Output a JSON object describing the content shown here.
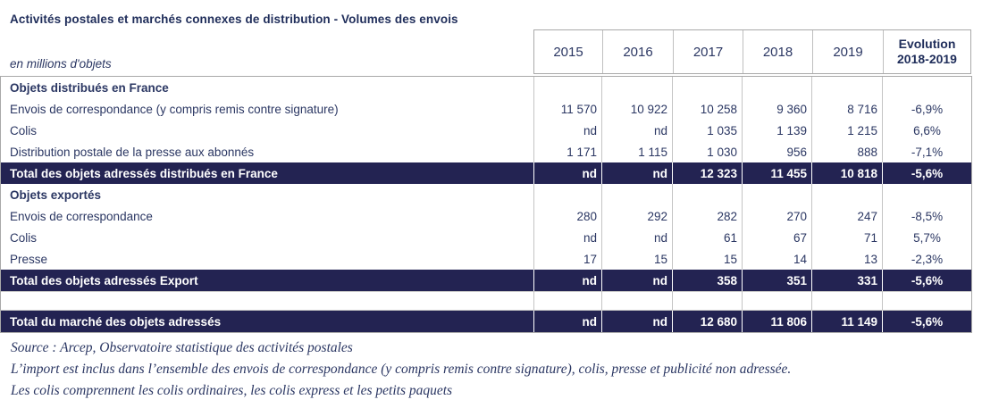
{
  "title": "Activités postales et marchés connexes de distribution - Volumes des envois",
  "unit_label": "en millions d'objets",
  "table": {
    "year_columns": [
      "2015",
      "2016",
      "2017",
      "2018",
      "2019"
    ],
    "evolution_header": {
      "line1": "Evolution",
      "line2": "2018-2019"
    },
    "rows": [
      {
        "type": "section",
        "label": "Objets distribués en France",
        "values": [
          "",
          "",
          "",
          "",
          "",
          ""
        ]
      },
      {
        "type": "data",
        "label": "Envois de correspondance (y compris remis contre signature)",
        "values": [
          "11 570",
          "10 922",
          "10 258",
          "9 360",
          "8 716",
          "-6,9%"
        ]
      },
      {
        "type": "data",
        "label": "Colis",
        "values": [
          "nd",
          "nd",
          "1 035",
          "1 139",
          "1 215",
          "6,6%"
        ]
      },
      {
        "type": "data",
        "label": "Distribution postale de la presse aux abonnés",
        "values": [
          "1 171",
          "1 115",
          "1 030",
          "956",
          "888",
          "-7,1%"
        ]
      },
      {
        "type": "total",
        "label": "Total des objets adressés distribués en France",
        "values": [
          "nd",
          "nd",
          "12 323",
          "11 455",
          "10 818",
          "-5,6%"
        ]
      },
      {
        "type": "section",
        "label": "Objets exportés",
        "values": [
          "",
          "",
          "",
          "",
          "",
          ""
        ]
      },
      {
        "type": "data",
        "label": "Envois de correspondance",
        "values": [
          "280",
          "292",
          "282",
          "270",
          "247",
          "-8,5%"
        ]
      },
      {
        "type": "data",
        "label": "Colis",
        "values": [
          "nd",
          "nd",
          "61",
          "67",
          "71",
          "5,7%"
        ]
      },
      {
        "type": "data",
        "label": "Presse",
        "values": [
          "17",
          "15",
          "15",
          "14",
          "13",
          "-2,3%"
        ]
      },
      {
        "type": "total",
        "label": "Total des objets adressés Export",
        "values": [
          "nd",
          "nd",
          "358",
          "351",
          "331",
          "-5,6%"
        ]
      },
      {
        "type": "spacer",
        "label": "",
        "values": [
          "",
          "",
          "",
          "",
          "",
          ""
        ]
      },
      {
        "type": "total",
        "label": "Total du marché des objets adressés",
        "values": [
          "nd",
          "nd",
          "12 680",
          "11 806",
          "11 149",
          "-5,6%"
        ]
      }
    ]
  },
  "notes": [
    "Source : Arcep, Observatoire statistique des activités postales",
    "L’import est inclus dans l’ensemble des envois de correspondance (y compris remis contre signature), colis, presse et publicité non adressée.",
    "Les colis comprennent les colis ordinaires, les colis express et les petits paquets"
  ],
  "colors": {
    "band_navy": "#232352",
    "text_navy": "#2b3763",
    "title_navy": "#1f2d5a",
    "grid_gray": "#c4c4c4",
    "outer_border_gray": "#a9a9a9"
  }
}
